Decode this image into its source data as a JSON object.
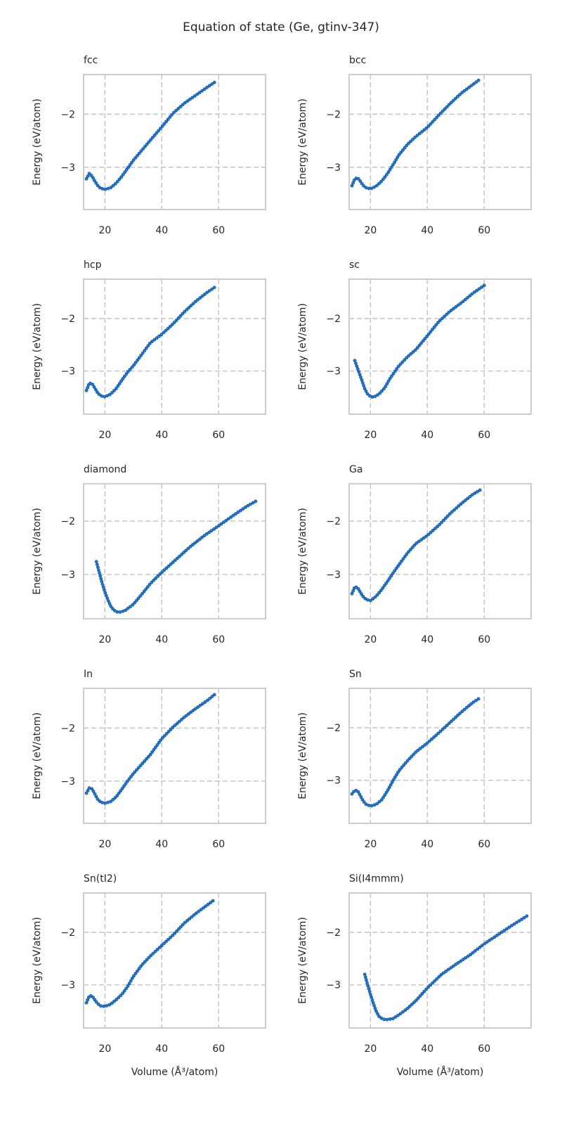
{
  "title": "Equation of state (Ge, gtinv-347)",
  "colors": {
    "point": "#1f77d4",
    "frame": "#cccccc",
    "grid": "#c8c8c8"
  },
  "chart_data": [
    {
      "type": "scatter",
      "title": "fcc",
      "xlabel": "",
      "ylabel": "Energy (eV/atom)",
      "xlim": [
        12.5,
        76.5
      ],
      "ylim": [
        -3.8,
        -1.25
      ],
      "xticks": [
        20,
        40,
        60
      ],
      "yticks": [
        -2,
        -3
      ],
      "anchors": [
        [
          13.5,
          -3.22
        ],
        [
          14.5,
          -3.12
        ],
        [
          15.5,
          -3.17
        ],
        [
          16.5,
          -3.27
        ],
        [
          17.5,
          -3.35
        ],
        [
          18.5,
          -3.4
        ],
        [
          20,
          -3.42
        ],
        [
          22,
          -3.39
        ],
        [
          24,
          -3.3
        ],
        [
          26,
          -3.17
        ],
        [
          28,
          -3.02
        ],
        [
          30,
          -2.87
        ],
        [
          33,
          -2.68
        ],
        [
          36,
          -2.49
        ],
        [
          40,
          -2.24
        ],
        [
          44,
          -1.98
        ],
        [
          48,
          -1.79
        ],
        [
          52,
          -1.64
        ],
        [
          56,
          -1.49
        ],
        [
          58.5,
          -1.4
        ]
      ]
    },
    {
      "type": "scatter",
      "title": "bcc",
      "xlabel": "",
      "ylabel": "Energy (eV/atom)",
      "xlim": [
        12.5,
        76.5
      ],
      "ylim": [
        -3.8,
        -1.25
      ],
      "xticks": [
        20,
        40,
        60
      ],
      "yticks": [
        -2,
        -3
      ],
      "anchors": [
        [
          13.5,
          -3.35
        ],
        [
          14.5,
          -3.22
        ],
        [
          15.5,
          -3.2
        ],
        [
          16.5,
          -3.27
        ],
        [
          17.5,
          -3.35
        ],
        [
          18.5,
          -3.39
        ],
        [
          20,
          -3.41
        ],
        [
          22,
          -3.36
        ],
        [
          24,
          -3.26
        ],
        [
          26,
          -3.12
        ],
        [
          28,
          -2.95
        ],
        [
          30,
          -2.77
        ],
        [
          33,
          -2.57
        ],
        [
          36,
          -2.42
        ],
        [
          40,
          -2.25
        ],
        [
          44,
          -2.02
        ],
        [
          48,
          -1.8
        ],
        [
          52,
          -1.6
        ],
        [
          56,
          -1.44
        ],
        [
          58,
          -1.36
        ]
      ]
    },
    {
      "type": "scatter",
      "title": "hcp",
      "xlabel": "",
      "ylabel": "Energy (eV/atom)",
      "xlim": [
        12.5,
        76.5
      ],
      "ylim": [
        -3.82,
        -1.25
      ],
      "xticks": [
        20,
        40,
        60
      ],
      "yticks": [
        -2,
        -3
      ],
      "anchors": [
        [
          13.5,
          -3.37
        ],
        [
          14.5,
          -3.23
        ],
        [
          15.5,
          -3.24
        ],
        [
          16.5,
          -3.33
        ],
        [
          17.5,
          -3.42
        ],
        [
          18.5,
          -3.47
        ],
        [
          20,
          -3.49
        ],
        [
          22,
          -3.44
        ],
        [
          24,
          -3.33
        ],
        [
          26,
          -3.17
        ],
        [
          28,
          -3.02
        ],
        [
          30,
          -2.9
        ],
        [
          33,
          -2.68
        ],
        [
          36,
          -2.46
        ],
        [
          40,
          -2.3
        ],
        [
          44,
          -2.1
        ],
        [
          48,
          -1.87
        ],
        [
          52,
          -1.67
        ],
        [
          56,
          -1.5
        ],
        [
          58.5,
          -1.41
        ]
      ]
    },
    {
      "type": "scatter",
      "title": "sc",
      "xlabel": "",
      "ylabel": "Energy (eV/atom)",
      "xlim": [
        12.5,
        76.5
      ],
      "ylim": [
        -3.82,
        -1.25
      ],
      "xticks": [
        20,
        40,
        60
      ],
      "yticks": [
        -2,
        -3
      ],
      "anchors": [
        [
          14.5,
          -2.8
        ],
        [
          15,
          -2.88
        ],
        [
          16,
          -3.03
        ],
        [
          17,
          -3.18
        ],
        [
          18,
          -3.34
        ],
        [
          19,
          -3.44
        ],
        [
          20,
          -3.48
        ],
        [
          21,
          -3.5
        ],
        [
          23,
          -3.44
        ],
        [
          25,
          -3.32
        ],
        [
          27,
          -3.13
        ],
        [
          30,
          -2.9
        ],
        [
          33,
          -2.73
        ],
        [
          36,
          -2.59
        ],
        [
          40,
          -2.33
        ],
        [
          44,
          -2.06
        ],
        [
          48,
          -1.86
        ],
        [
          52,
          -1.7
        ],
        [
          56,
          -1.52
        ],
        [
          60,
          -1.37
        ]
      ]
    },
    {
      "type": "scatter",
      "title": "diamond",
      "xlabel": "",
      "ylabel": "Energy (eV/atom)",
      "xlim": [
        12.5,
        76.5
      ],
      "ylim": [
        -3.83,
        -1.3
      ],
      "xticks": [
        20,
        40,
        60
      ],
      "yticks": [
        -2,
        -3
      ],
      "anchors": [
        [
          17,
          -2.76
        ],
        [
          18,
          -2.96
        ],
        [
          19,
          -3.16
        ],
        [
          20,
          -3.33
        ],
        [
          21,
          -3.47
        ],
        [
          22,
          -3.59
        ],
        [
          23,
          -3.66
        ],
        [
          24,
          -3.7
        ],
        [
          25,
          -3.71
        ],
        [
          27,
          -3.68
        ],
        [
          30,
          -3.56
        ],
        [
          33,
          -3.37
        ],
        [
          36,
          -3.17
        ],
        [
          40,
          -2.96
        ],
        [
          45,
          -2.72
        ],
        [
          50,
          -2.48
        ],
        [
          55,
          -2.27
        ],
        [
          60,
          -2.09
        ],
        [
          65,
          -1.9
        ],
        [
          70,
          -1.72
        ],
        [
          73,
          -1.63
        ]
      ]
    },
    {
      "type": "scatter",
      "title": "Ga",
      "xlabel": "",
      "ylabel": "Energy (eV/atom)",
      "xlim": [
        12.5,
        76.5
      ],
      "ylim": [
        -3.83,
        -1.3
      ],
      "xticks": [
        20,
        40,
        60
      ],
      "yticks": [
        -2,
        -3
      ],
      "anchors": [
        [
          13.5,
          -3.36
        ],
        [
          14.5,
          -3.23
        ],
        [
          15.5,
          -3.25
        ],
        [
          16.5,
          -3.34
        ],
        [
          17.5,
          -3.42
        ],
        [
          18.5,
          -3.47
        ],
        [
          20,
          -3.49
        ],
        [
          22,
          -3.41
        ],
        [
          24,
          -3.28
        ],
        [
          26,
          -3.13
        ],
        [
          28,
          -2.97
        ],
        [
          30,
          -2.82
        ],
        [
          33,
          -2.6
        ],
        [
          36,
          -2.42
        ],
        [
          40,
          -2.27
        ],
        [
          44,
          -2.08
        ],
        [
          48,
          -1.86
        ],
        [
          52,
          -1.67
        ],
        [
          56,
          -1.5
        ],
        [
          58.5,
          -1.42
        ]
      ]
    },
    {
      "type": "scatter",
      "title": "In",
      "xlabel": "",
      "ylabel": "Energy (eV/atom)",
      "xlim": [
        12.5,
        76.5
      ],
      "ylim": [
        -3.8,
        -1.25
      ],
      "xticks": [
        20,
        40,
        60
      ],
      "yticks": [
        -2,
        -3
      ],
      "anchors": [
        [
          13.5,
          -3.23
        ],
        [
          14.5,
          -3.13
        ],
        [
          15.5,
          -3.15
        ],
        [
          16.5,
          -3.25
        ],
        [
          17.5,
          -3.35
        ],
        [
          18.5,
          -3.4
        ],
        [
          20,
          -3.42
        ],
        [
          22,
          -3.39
        ],
        [
          24,
          -3.3
        ],
        [
          26,
          -3.15
        ],
        [
          28,
          -3.0
        ],
        [
          30,
          -2.86
        ],
        [
          33,
          -2.68
        ],
        [
          36,
          -2.5
        ],
        [
          40,
          -2.2
        ],
        [
          44,
          -1.98
        ],
        [
          48,
          -1.79
        ],
        [
          52,
          -1.63
        ],
        [
          56,
          -1.48
        ],
        [
          58.5,
          -1.37
        ]
      ]
    },
    {
      "type": "scatter",
      "title": "Sn",
      "xlabel": "",
      "ylabel": "Energy (eV/atom)",
      "xlim": [
        12.5,
        76.5
      ],
      "ylim": [
        -3.82,
        -1.25
      ],
      "xticks": [
        20,
        40,
        60
      ],
      "yticks": [
        -2,
        -3
      ],
      "anchors": [
        [
          13.5,
          -3.26
        ],
        [
          14.5,
          -3.19
        ],
        [
          15.5,
          -3.2
        ],
        [
          16.5,
          -3.3
        ],
        [
          17.5,
          -3.4
        ],
        [
          18.5,
          -3.46
        ],
        [
          20,
          -3.49
        ],
        [
          22,
          -3.46
        ],
        [
          24,
          -3.37
        ],
        [
          26,
          -3.2
        ],
        [
          28,
          -3.0
        ],
        [
          30,
          -2.82
        ],
        [
          33,
          -2.63
        ],
        [
          36,
          -2.46
        ],
        [
          40,
          -2.29
        ],
        [
          44,
          -2.1
        ],
        [
          48,
          -1.9
        ],
        [
          52,
          -1.7
        ],
        [
          56,
          -1.52
        ],
        [
          58,
          -1.45
        ]
      ]
    },
    {
      "type": "scatter",
      "title": "Sn(tI2)",
      "xlabel": "Volume (Å³/atom)",
      "ylabel": "Energy (eV/atom)",
      "xlim": [
        12.5,
        76.5
      ],
      "ylim": [
        -3.82,
        -1.25
      ],
      "xticks": [
        20,
        40,
        60
      ],
      "yticks": [
        -2,
        -3
      ],
      "anchors": [
        [
          13.5,
          -3.34
        ],
        [
          14.5,
          -3.21
        ],
        [
          15.5,
          -3.21
        ],
        [
          16.5,
          -3.29
        ],
        [
          17.5,
          -3.36
        ],
        [
          18.5,
          -3.4
        ],
        [
          20,
          -3.41
        ],
        [
          22,
          -3.37
        ],
        [
          24,
          -3.28
        ],
        [
          26,
          -3.18
        ],
        [
          28,
          -3.03
        ],
        [
          30,
          -2.84
        ],
        [
          33,
          -2.62
        ],
        [
          36,
          -2.45
        ],
        [
          40,
          -2.25
        ],
        [
          44,
          -2.05
        ],
        [
          48,
          -1.82
        ],
        [
          52,
          -1.64
        ],
        [
          56,
          -1.48
        ],
        [
          58,
          -1.4
        ]
      ]
    },
    {
      "type": "scatter",
      "title": "Si(I4mmm)",
      "xlabel": "Volume (Å³/atom)",
      "ylabel": "Energy (eV/atom)",
      "xlim": [
        12.5,
        76.5
      ],
      "ylim": [
        -3.82,
        -1.25
      ],
      "xticks": [
        20,
        40,
        60
      ],
      "yticks": [
        -2,
        -3
      ],
      "anchors": [
        [
          18,
          -2.8
        ],
        [
          19,
          -3.0
        ],
        [
          20,
          -3.18
        ],
        [
          21,
          -3.35
        ],
        [
          22,
          -3.5
        ],
        [
          23,
          -3.6
        ],
        [
          24,
          -3.64
        ],
        [
          25,
          -3.66
        ],
        [
          26,
          -3.66
        ],
        [
          28,
          -3.64
        ],
        [
          30,
          -3.57
        ],
        [
          33,
          -3.45
        ],
        [
          36,
          -3.3
        ],
        [
          40,
          -3.06
        ],
        [
          45,
          -2.8
        ],
        [
          50,
          -2.61
        ],
        [
          55,
          -2.43
        ],
        [
          60,
          -2.22
        ],
        [
          65,
          -2.04
        ],
        [
          70,
          -1.86
        ],
        [
          75,
          -1.69
        ]
      ]
    }
  ]
}
